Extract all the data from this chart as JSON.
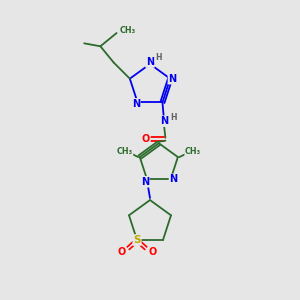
{
  "bg_color": "#e6e6e6",
  "atom_colors": {
    "N": "#0000ee",
    "O": "#ff0000",
    "S": "#bbaa00",
    "C": "#2d6b2d",
    "H": "#606060"
  },
  "bond_color": "#2d6b2d",
  "figsize": [
    3.0,
    3.0
  ],
  "dpi": 100,
  "xlim": [
    0,
    10
  ],
  "ylim": [
    0,
    10
  ]
}
